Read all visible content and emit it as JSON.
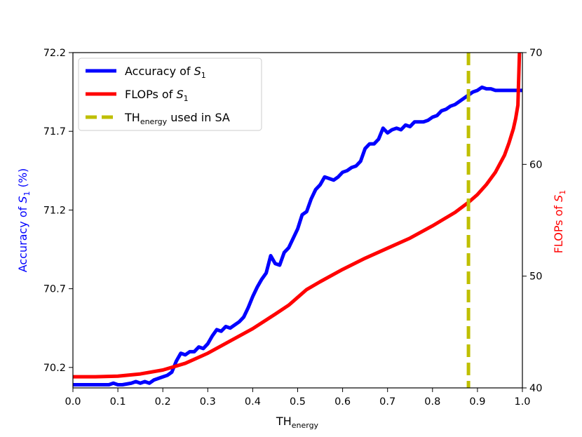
{
  "chart_data": {
    "type": "line",
    "xlabel": "TH",
    "xlabel_sub": "energy",
    "ylabel_left_prefix": "Accuracy of ",
    "ylabel_left_var": "S",
    "ylabel_left_sub": "1",
    "ylabel_left_suffix": " (%)",
    "ylabel_right_prefix": "FLOPs of ",
    "ylabel_right_var": "S",
    "ylabel_right_sub": "1",
    "xlim": [
      0.0,
      1.0
    ],
    "ylim_left": [
      70.07,
      72.2
    ],
    "ylim_right": [
      40,
      70
    ],
    "x_ticks": [
      "0.0",
      "0.1",
      "0.2",
      "0.3",
      "0.4",
      "0.5",
      "0.6",
      "0.7",
      "0.8",
      "0.9",
      "1.0"
    ],
    "y_left_ticks": [
      "70.2",
      "70.7",
      "71.2",
      "71.7",
      "72.2"
    ],
    "y_right_ticks": [
      "40",
      "50",
      "60",
      "70"
    ],
    "grid": false,
    "legend_position": "top-left",
    "legend": [
      {
        "prefix": "Accuracy of ",
        "var": "S",
        "sub": "1",
        "suffix": "",
        "color": "#0000ff",
        "style": "solid"
      },
      {
        "prefix": "FLOPs of ",
        "var": "S",
        "sub": "1",
        "suffix": "",
        "color": "#ff0000",
        "style": "solid"
      },
      {
        "prefix": "TH",
        "var": "",
        "sub": "energy",
        "suffix": " used in SA",
        "color": "#bfbf00",
        "style": "dashed"
      }
    ],
    "series": [
      {
        "axis": "left",
        "color": "#0000ff",
        "x": [
          0.0,
          0.05,
          0.08,
          0.09,
          0.1,
          0.11,
          0.13,
          0.14,
          0.15,
          0.16,
          0.17,
          0.18,
          0.19,
          0.2,
          0.21,
          0.22,
          0.23,
          0.24,
          0.25,
          0.26,
          0.27,
          0.28,
          0.29,
          0.3,
          0.31,
          0.32,
          0.33,
          0.34,
          0.35,
          0.36,
          0.37,
          0.38,
          0.39,
          0.4,
          0.41,
          0.42,
          0.43,
          0.44,
          0.45,
          0.46,
          0.47,
          0.48,
          0.49,
          0.5,
          0.51,
          0.52,
          0.53,
          0.54,
          0.55,
          0.56,
          0.57,
          0.58,
          0.59,
          0.6,
          0.61,
          0.62,
          0.63,
          0.64,
          0.65,
          0.66,
          0.67,
          0.68,
          0.69,
          0.7,
          0.71,
          0.72,
          0.73,
          0.74,
          0.75,
          0.76,
          0.77,
          0.78,
          0.79,
          0.8,
          0.81,
          0.82,
          0.83,
          0.84,
          0.85,
          0.86,
          0.87,
          0.88,
          0.89,
          0.9,
          0.91,
          0.92,
          0.93,
          0.94,
          0.95,
          0.96,
          0.97,
          0.98,
          0.99,
          1.0
        ],
        "values": [
          70.09,
          70.09,
          70.09,
          70.1,
          70.09,
          70.09,
          70.1,
          70.11,
          70.1,
          70.11,
          70.1,
          70.12,
          70.13,
          70.14,
          70.15,
          70.17,
          70.24,
          70.29,
          70.28,
          70.3,
          70.3,
          70.33,
          70.32,
          70.35,
          70.4,
          70.44,
          70.43,
          70.46,
          70.45,
          70.47,
          70.49,
          70.52,
          70.58,
          70.65,
          70.71,
          70.76,
          70.8,
          70.91,
          70.86,
          70.85,
          70.93,
          70.96,
          71.02,
          71.08,
          71.17,
          71.19,
          71.27,
          71.33,
          71.36,
          71.41,
          71.4,
          71.39,
          71.41,
          71.44,
          71.45,
          71.47,
          71.48,
          71.51,
          71.59,
          71.62,
          71.62,
          71.65,
          71.72,
          71.69,
          71.71,
          71.72,
          71.71,
          71.74,
          71.73,
          71.76,
          71.76,
          71.76,
          71.77,
          71.79,
          71.8,
          71.83,
          71.84,
          71.86,
          71.87,
          71.89,
          71.91,
          71.93,
          71.95,
          71.96,
          71.98,
          71.97,
          71.97,
          71.96,
          71.96,
          71.96,
          71.96,
          71.96,
          71.96,
          71.96
        ]
      },
      {
        "axis": "right",
        "color": "#ff0000",
        "x": [
          0.0,
          0.05,
          0.1,
          0.15,
          0.2,
          0.25,
          0.3,
          0.35,
          0.4,
          0.45,
          0.48,
          0.5,
          0.52,
          0.55,
          0.6,
          0.65,
          0.7,
          0.75,
          0.8,
          0.85,
          0.88,
          0.9,
          0.92,
          0.94,
          0.96,
          0.97,
          0.98,
          0.985,
          0.99,
          0.995,
          1.0
        ],
        "values": [
          41.0,
          41.0,
          41.05,
          41.25,
          41.6,
          42.2,
          43.1,
          44.2,
          45.3,
          46.6,
          47.4,
          48.1,
          48.8,
          49.5,
          50.6,
          51.6,
          52.5,
          53.4,
          54.5,
          55.7,
          56.6,
          57.3,
          58.2,
          59.3,
          60.8,
          61.9,
          63.2,
          64.1,
          65.3,
          72.0,
          80.6
        ]
      }
    ],
    "vline": {
      "x": 0.88,
      "color": "#bfbf00",
      "style": "dashed"
    }
  }
}
